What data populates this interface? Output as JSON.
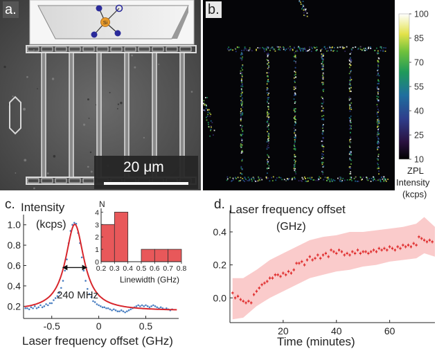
{
  "panels": {
    "a": {
      "label": "a.",
      "scalebar_label": "20 μm",
      "inset_atom_label": "Si"
    },
    "b": {
      "label": "b.",
      "colorbar_ticks": [
        10,
        25,
        40,
        55,
        70,
        85,
        100
      ],
      "colorbar_title_lines": [
        "ZPL",
        "Intensity",
        "(kcps)"
      ]
    }
  },
  "chart_data": [
    {
      "panel": "c.",
      "type": "line",
      "title": "",
      "ylabel_lines": [
        "Intensity",
        "(kcps)"
      ],
      "xlabel": "Laser frequency offset (GHz)",
      "xlim": [
        -0.8,
        0.85
      ],
      "ylim": [
        0.08,
        1.1
      ],
      "xticks": [
        -0.5,
        0,
        0.5
      ],
      "xtick_labels": [
        "-0.5",
        "0",
        "0.5"
      ],
      "yticks": [
        0.2,
        0.4,
        0.6,
        0.8,
        1.0
      ],
      "ytick_labels": [
        "0.2",
        "0.4",
        "0.6",
        "0.8",
        "1.0"
      ],
      "fit_color": "#d7262c",
      "data_color": "#4a7fc1",
      "fit": {
        "center": -0.255,
        "fwhm": 0.24,
        "amplitude": 0.85,
        "offset": 0.155
      },
      "data_points": [
        [
          -0.78,
          0.18
        ],
        [
          -0.76,
          0.18
        ],
        [
          -0.74,
          0.17
        ],
        [
          -0.72,
          0.19
        ],
        [
          -0.7,
          0.18
        ],
        [
          -0.68,
          0.2
        ],
        [
          -0.66,
          0.18
        ],
        [
          -0.64,
          0.19
        ],
        [
          -0.62,
          0.21
        ],
        [
          -0.6,
          0.19
        ],
        [
          -0.58,
          0.2
        ],
        [
          -0.56,
          0.22
        ],
        [
          -0.54,
          0.21
        ],
        [
          -0.52,
          0.23
        ],
        [
          -0.5,
          0.23
        ],
        [
          -0.48,
          0.26
        ],
        [
          -0.46,
          0.28
        ],
        [
          -0.44,
          0.3
        ],
        [
          -0.42,
          0.33
        ],
        [
          -0.4,
          0.38
        ],
        [
          -0.38,
          0.45
        ],
        [
          -0.36,
          0.55
        ],
        [
          -0.34,
          0.66
        ],
        [
          -0.32,
          0.82
        ],
        [
          -0.3,
          0.94
        ],
        [
          -0.28,
          1.0
        ],
        [
          -0.26,
          1.02
        ],
        [
          -0.24,
          1.01
        ],
        [
          -0.22,
          0.92
        ],
        [
          -0.2,
          0.82
        ],
        [
          -0.18,
          0.68
        ],
        [
          -0.16,
          0.55
        ],
        [
          -0.14,
          0.45
        ],
        [
          -0.12,
          0.37
        ],
        [
          -0.1,
          0.32
        ],
        [
          -0.08,
          0.29
        ],
        [
          -0.06,
          0.25
        ],
        [
          -0.04,
          0.24
        ],
        [
          -0.02,
          0.22
        ],
        [
          0.0,
          0.21
        ],
        [
          0.02,
          0.2
        ],
        [
          0.04,
          0.19
        ],
        [
          0.06,
          0.19
        ],
        [
          0.08,
          0.18
        ],
        [
          0.1,
          0.18
        ],
        [
          0.12,
          0.17
        ],
        [
          0.14,
          0.16
        ],
        [
          0.16,
          0.17
        ],
        [
          0.18,
          0.16
        ],
        [
          0.2,
          0.15
        ],
        [
          0.22,
          0.15
        ],
        [
          0.24,
          0.16
        ],
        [
          0.26,
          0.15
        ],
        [
          0.28,
          0.14
        ],
        [
          0.3,
          0.15
        ],
        [
          0.32,
          0.16
        ],
        [
          0.34,
          0.17
        ],
        [
          0.36,
          0.18
        ],
        [
          0.38,
          0.19
        ],
        [
          0.4,
          0.2
        ],
        [
          0.42,
          0.21
        ],
        [
          0.44,
          0.2
        ],
        [
          0.46,
          0.21
        ],
        [
          0.48,
          0.2
        ],
        [
          0.5,
          0.21
        ],
        [
          0.52,
          0.2
        ],
        [
          0.54,
          0.19
        ],
        [
          0.56,
          0.2
        ],
        [
          0.58,
          0.21
        ],
        [
          0.6,
          0.2
        ],
        [
          0.62,
          0.19
        ],
        [
          0.64,
          0.18
        ],
        [
          0.66,
          0.19
        ],
        [
          0.68,
          0.18
        ],
        [
          0.7,
          0.17
        ],
        [
          0.72,
          0.18
        ],
        [
          0.74,
          0.17
        ],
        [
          0.76,
          0.16
        ],
        [
          0.78,
          0.17
        ]
      ],
      "annotation": "240 MHz"
    },
    {
      "panel": "c. inset",
      "type": "bar",
      "ylabel": "N",
      "xlabel": "Linewidth (GHz)",
      "xticks": [
        0.2,
        0.3,
        0.4,
        0.5,
        0.6,
        0.7,
        0.8
      ],
      "xtick_labels": [
        "0.2",
        "0.3",
        "0.4",
        "0.5",
        "0.6",
        "0.7",
        "0.8"
      ],
      "yticks": [
        0,
        1,
        2,
        3,
        4
      ],
      "ytick_labels": [
        "0",
        "1",
        "2",
        "3",
        "4"
      ],
      "xlim": [
        0.2,
        0.8
      ],
      "ylim": [
        0,
        4.3
      ],
      "bar_color": "#e8585a",
      "bins": [
        {
          "from": 0.2,
          "to": 0.3,
          "count": 3
        },
        {
          "from": 0.3,
          "to": 0.4,
          "count": 4
        },
        {
          "from": 0.4,
          "to": 0.5,
          "count": 0
        },
        {
          "from": 0.5,
          "to": 0.6,
          "count": 1
        },
        {
          "from": 0.6,
          "to": 0.7,
          "count": 1
        },
        {
          "from": 0.7,
          "to": 0.8,
          "count": 1
        }
      ]
    },
    {
      "panel": "d.",
      "type": "scatter",
      "title": "",
      "ylabel_lines": [
        "Laser frequency offset",
        "(GHz)"
      ],
      "xlabel": "Time (minutes)",
      "xlim": [
        0,
        77
      ],
      "ylim": [
        -0.15,
        0.53
      ],
      "xticks": [
        20,
        40,
        60
      ],
      "xtick_labels": [
        "20",
        "40",
        "60"
      ],
      "yticks": [
        0.0,
        0.2,
        0.4
      ],
      "ytick_labels": [
        "0.0",
        "0.2",
        "0.4"
      ],
      "point_color": "#e03030",
      "band_color": "#f9c5c5",
      "points": [
        [
          1,
          0.03
        ],
        [
          2,
          0.0
        ],
        [
          3,
          0.01
        ],
        [
          4,
          -0.01
        ],
        [
          5,
          -0.02
        ],
        [
          6,
          -0.03
        ],
        [
          7,
          -0.02
        ],
        [
          8,
          -0.03
        ],
        [
          9,
          0.02
        ],
        [
          10,
          0.04
        ],
        [
          11,
          0.06
        ],
        [
          12,
          0.08
        ],
        [
          13,
          0.09
        ],
        [
          14,
          0.1
        ],
        [
          15,
          0.12
        ],
        [
          16,
          0.12
        ],
        [
          17,
          0.14
        ],
        [
          18,
          0.14
        ],
        [
          19,
          0.13
        ],
        [
          20,
          0.15
        ],
        [
          21,
          0.14
        ],
        [
          22,
          0.16
        ],
        [
          23,
          0.15
        ],
        [
          24,
          0.17
        ],
        [
          25,
          0.21
        ],
        [
          26,
          0.21
        ],
        [
          27,
          0.22
        ],
        [
          28,
          0.2
        ],
        [
          29,
          0.23
        ],
        [
          30,
          0.25
        ],
        [
          31,
          0.23
        ],
        [
          32,
          0.24
        ],
        [
          33,
          0.26
        ],
        [
          34,
          0.24
        ],
        [
          35,
          0.26
        ],
        [
          36,
          0.27
        ],
        [
          37,
          0.25
        ],
        [
          38,
          0.29
        ],
        [
          39,
          0.28
        ],
        [
          40,
          0.27
        ],
        [
          41,
          0.29
        ],
        [
          42,
          0.28
        ],
        [
          43,
          0.26
        ],
        [
          44,
          0.27
        ],
        [
          45,
          0.26
        ],
        [
          46,
          0.28
        ],
        [
          47,
          0.27
        ],
        [
          48,
          0.29
        ],
        [
          49,
          0.27
        ],
        [
          50,
          0.28
        ],
        [
          51,
          0.28
        ],
        [
          52,
          0.27
        ],
        [
          53,
          0.28
        ],
        [
          54,
          0.29
        ],
        [
          55,
          0.28
        ],
        [
          56,
          0.3
        ],
        [
          57,
          0.29
        ],
        [
          58,
          0.3
        ],
        [
          59,
          0.29
        ],
        [
          60,
          0.31
        ],
        [
          61,
          0.3
        ],
        [
          62,
          0.29
        ],
        [
          63,
          0.31
        ],
        [
          64,
          0.3
        ],
        [
          65,
          0.32
        ],
        [
          66,
          0.31
        ],
        [
          67,
          0.32
        ],
        [
          68,
          0.31
        ],
        [
          69,
          0.33
        ],
        [
          70,
          0.32
        ],
        [
          71,
          0.37
        ],
        [
          72,
          0.36
        ],
        [
          73,
          0.35
        ],
        [
          74,
          0.34
        ],
        [
          75,
          0.35
        ],
        [
          76,
          0.34
        ]
      ],
      "band_lower": [
        [
          1,
          -0.13
        ],
        [
          5,
          -0.12
        ],
        [
          10,
          -0.05
        ],
        [
          15,
          0.0
        ],
        [
          20,
          0.04
        ],
        [
          25,
          0.08
        ],
        [
          30,
          0.12
        ],
        [
          35,
          0.14
        ],
        [
          40,
          0.16
        ],
        [
          45,
          0.17
        ],
        [
          50,
          0.19
        ],
        [
          55,
          0.2
        ],
        [
          60,
          0.22
        ],
        [
          65,
          0.23
        ],
        [
          70,
          0.24
        ],
        [
          73,
          0.27
        ],
        [
          77,
          0.25
        ]
      ],
      "band_upper": [
        [
          1,
          0.12
        ],
        [
          5,
          0.12
        ],
        [
          10,
          0.17
        ],
        [
          15,
          0.23
        ],
        [
          20,
          0.27
        ],
        [
          25,
          0.31
        ],
        [
          30,
          0.35
        ],
        [
          35,
          0.37
        ],
        [
          40,
          0.38
        ],
        [
          45,
          0.4
        ],
        [
          50,
          0.4
        ],
        [
          55,
          0.41
        ],
        [
          60,
          0.42
        ],
        [
          65,
          0.43
        ],
        [
          70,
          0.45
        ],
        [
          73,
          0.49
        ],
        [
          77,
          0.43
        ]
      ]
    }
  ]
}
